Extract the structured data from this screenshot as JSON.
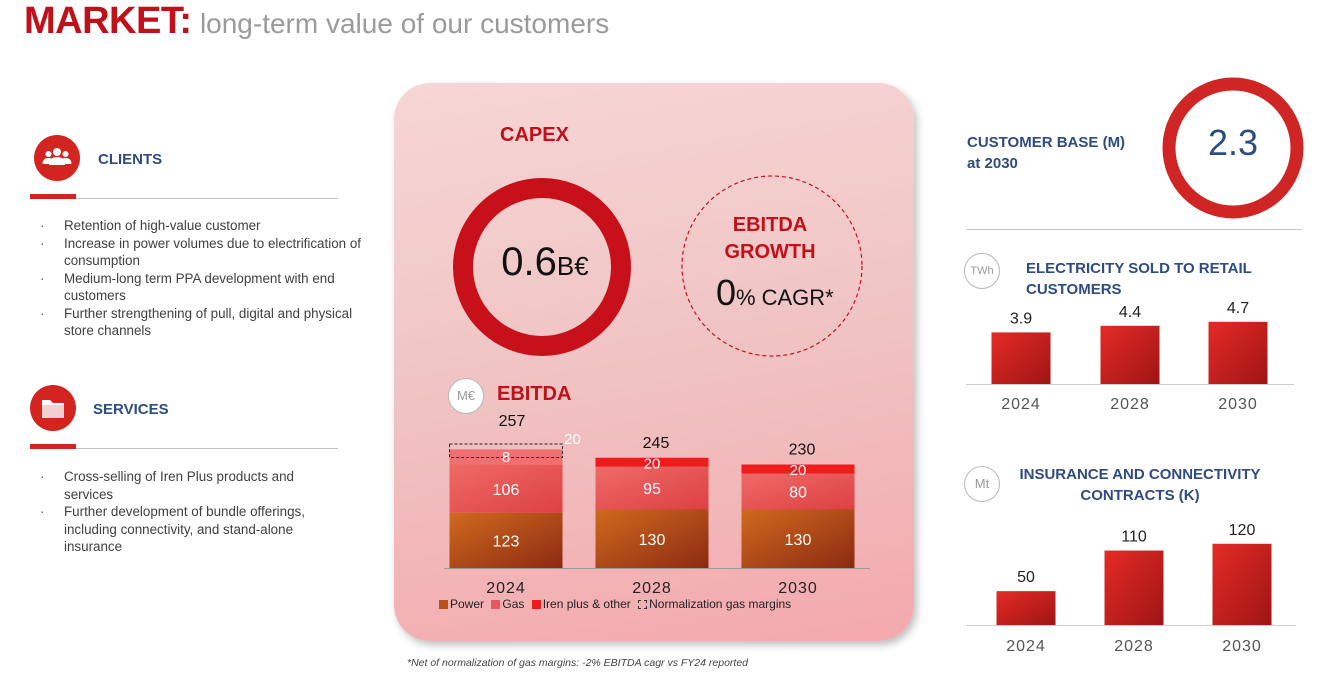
{
  "header": {
    "title_main": "MARKET:",
    "title_sub": "long-term value of our customers"
  },
  "clients": {
    "title": "CLIENTS",
    "icon": "people-icon",
    "bullets": [
      "Retention of high-value customer",
      "Increase in power volumes due to electrification of consumption",
      "Medium-long term PPA development with end customers",
      "Further strengthening of pull, digital and physical store channels"
    ]
  },
  "services": {
    "title": "SERVICES",
    "icon": "folder-icon",
    "bullets": [
      "Cross-selling of Iren Plus products and services",
      "Further development of bundle offerings, including connectivity, and stand-alone insurance"
    ]
  },
  "capex": {
    "title": "CAPEX",
    "value": "0.6",
    "unit": "B€"
  },
  "ebitda_growth": {
    "title_line1": "EBITDA",
    "title_line2": "GROWTH",
    "value": "0",
    "pct": "%",
    "cagr": "CAGR*"
  },
  "ebitda_unit": "M€",
  "customer_base": {
    "label_line1": "CUSTOMER BASE (M)",
    "label_line2": "at 2030",
    "value": "2.3"
  },
  "footnote": "*Net of normalization of gas margins: -2% EBITDA cagr vs FY24 reported",
  "colors": {
    "brand_red": "#c0101a",
    "navy": "#2f4c7f",
    "power": "#c2571a",
    "gas": "#e8575b",
    "iren_plus": "#ee1c1c"
  },
  "chart_data": [
    {
      "type": "bar",
      "stacked": true,
      "title": "EBITDA",
      "unit": "M€",
      "categories": [
        "2024",
        "2028",
        "2030"
      ],
      "series": [
        {
          "name": "Power",
          "values": [
            123,
            130,
            130
          ]
        },
        {
          "name": "Gas",
          "values": [
            106,
            95,
            80
          ]
        },
        {
          "name": "Iren plus & other",
          "values": [
            20,
            20,
            20
          ]
        },
        {
          "name": "Normalization gas margins",
          "values": [
            8,
            null,
            null
          ]
        }
      ],
      "totals": [
        257,
        245,
        230
      ],
      "legend": "bottom"
    },
    {
      "type": "bar",
      "title": "ELECTRICITY SOLD TO RETAIL CUSTOMERS",
      "unit": "TWh",
      "categories": [
        "2024",
        "2028",
        "2030"
      ],
      "values": [
        3.9,
        4.4,
        4.7
      ],
      "ylim": [
        0,
        6.5
      ]
    },
    {
      "type": "bar",
      "title_line1": "INSURANCE AND CONNECTIVITY",
      "title_line2": "CONTRACTS (K)",
      "unit": "Mt",
      "categories": [
        "2024",
        "2028",
        "2030"
      ],
      "values": [
        50,
        110,
        120
      ],
      "ylim": [
        0,
        130
      ]
    }
  ]
}
